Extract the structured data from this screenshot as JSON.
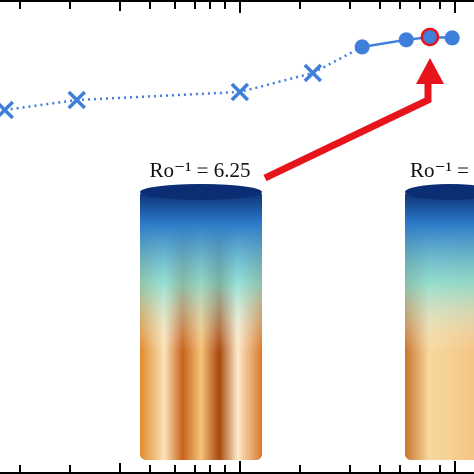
{
  "chart_data": {
    "type": "line",
    "xlim": [
      0,
      10
    ],
    "ylim": [
      0,
      10
    ],
    "series": [
      {
        "color": "#3f7fdc",
        "marker": "x",
        "linestyle": "dotted",
        "values": [
          7.68,
          7.89,
          8.06,
          8.46
        ],
        "x": [
          0.1,
          1.62,
          5.06,
          6.6
        ]
      },
      {
        "color": "#3f7fdc",
        "marker": "o",
        "linestyle": "solid",
        "values": [
          9.01,
          9.16,
          9.22,
          9.2
        ],
        "x": [
          7.64,
          8.57,
          9.07,
          9.54
        ],
        "highlight": 2,
        "highlight_color": "#e8141c"
      }
    ],
    "annotations": [
      "Ro⁻¹ = 6.25",
      "Ro⁻¹ ="
    ]
  }
}
